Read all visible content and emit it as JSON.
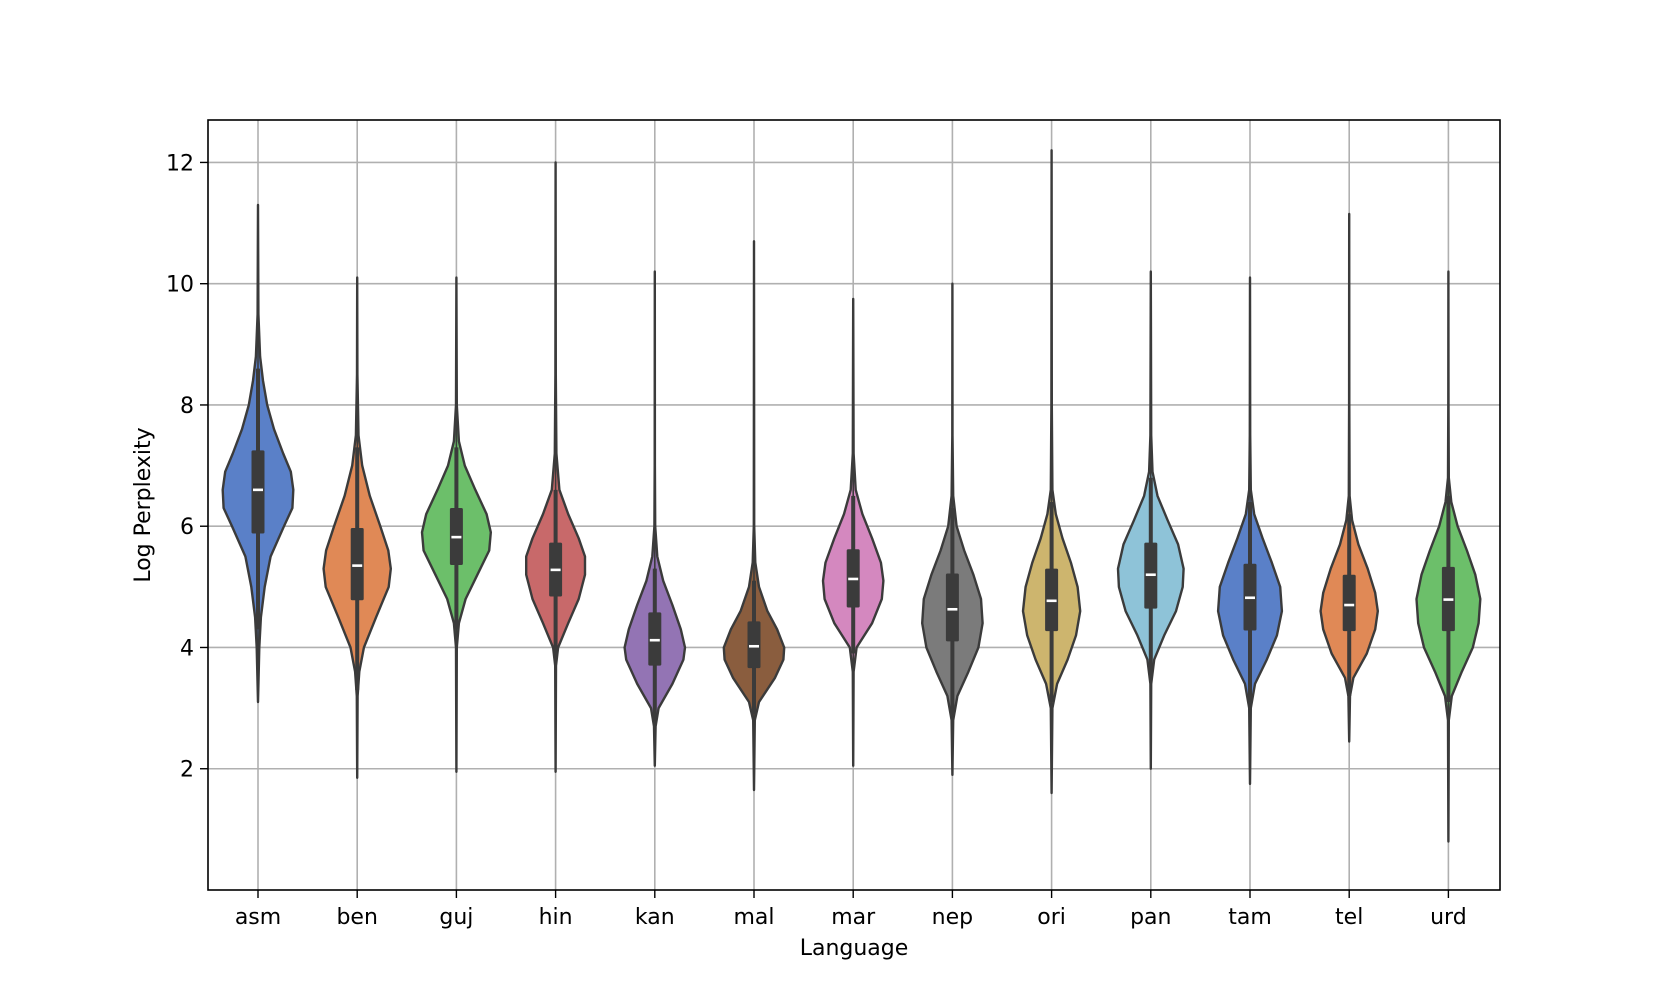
{
  "chart_data": {
    "type": "violin",
    "title": "",
    "xlabel": "Language",
    "ylabel": "Log Perplexity",
    "ylim": [
      0.0,
      12.7
    ],
    "yticks": [
      2,
      4,
      6,
      8,
      10,
      12
    ],
    "grid": true,
    "categories": [
      "asm",
      "ben",
      "guj",
      "hin",
      "kan",
      "mal",
      "mar",
      "nep",
      "ori",
      "pan",
      "tam",
      "tel",
      "urd"
    ],
    "violins": [
      {
        "label": "asm",
        "color": "#5a80c8",
        "min": 3.1,
        "max": 11.3,
        "q1": 5.88,
        "median": 6.6,
        "q3": 7.25,
        "w_low": 4.3,
        "w_high": 8.6,
        "profile": [
          [
            3.1,
            0.0
          ],
          [
            4.0,
            0.03
          ],
          [
            4.5,
            0.07
          ],
          [
            5.0,
            0.16
          ],
          [
            5.5,
            0.3
          ],
          [
            6.0,
            0.62
          ],
          [
            6.3,
            0.82
          ],
          [
            6.6,
            0.84
          ],
          [
            6.9,
            0.78
          ],
          [
            7.2,
            0.6
          ],
          [
            7.6,
            0.38
          ],
          [
            8.0,
            0.22
          ],
          [
            8.4,
            0.12
          ],
          [
            8.8,
            0.05
          ],
          [
            9.5,
            0.01
          ],
          [
            11.3,
            0.0
          ]
        ]
      },
      {
        "label": "ben",
        "color": "#e08956",
        "min": 1.85,
        "max": 10.1,
        "q1": 4.78,
        "median": 5.35,
        "q3": 5.97,
        "w_low": 3.3,
        "w_high": 7.3,
        "profile": [
          [
            1.85,
            0.0
          ],
          [
            3.2,
            0.01
          ],
          [
            3.6,
            0.05
          ],
          [
            4.0,
            0.16
          ],
          [
            4.5,
            0.45
          ],
          [
            5.0,
            0.75
          ],
          [
            5.3,
            0.8
          ],
          [
            5.6,
            0.74
          ],
          [
            6.0,
            0.55
          ],
          [
            6.5,
            0.3
          ],
          [
            7.0,
            0.12
          ],
          [
            7.5,
            0.03
          ],
          [
            8.5,
            0.005
          ],
          [
            10.1,
            0.0
          ]
        ]
      },
      {
        "label": "guj",
        "color": "#6cbf6a",
        "min": 1.95,
        "max": 10.1,
        "q1": 5.36,
        "median": 5.82,
        "q3": 6.3,
        "w_low": 4.3,
        "w_high": 7.3,
        "profile": [
          [
            1.95,
            0.0
          ],
          [
            4.0,
            0.01
          ],
          [
            4.4,
            0.06
          ],
          [
            4.8,
            0.22
          ],
          [
            5.2,
            0.5
          ],
          [
            5.6,
            0.78
          ],
          [
            5.9,
            0.82
          ],
          [
            6.2,
            0.72
          ],
          [
            6.6,
            0.45
          ],
          [
            7.0,
            0.2
          ],
          [
            7.4,
            0.06
          ],
          [
            8.0,
            0.01
          ],
          [
            10.1,
            0.0
          ]
        ]
      },
      {
        "label": "hin",
        "color": "#c8696a",
        "min": 1.95,
        "max": 12.0,
        "q1": 4.84,
        "median": 5.28,
        "q3": 5.73,
        "w_low": 3.9,
        "w_high": 6.6,
        "profile": [
          [
            1.95,
            0.0
          ],
          [
            3.7,
            0.01
          ],
          [
            4.0,
            0.06
          ],
          [
            4.4,
            0.3
          ],
          [
            4.8,
            0.55
          ],
          [
            5.2,
            0.7
          ],
          [
            5.5,
            0.7
          ],
          [
            5.8,
            0.55
          ],
          [
            6.2,
            0.3
          ],
          [
            6.6,
            0.09
          ],
          [
            7.2,
            0.02
          ],
          [
            8.5,
            0.005
          ],
          [
            12.0,
            0.0
          ]
        ]
      },
      {
        "label": "kan",
        "color": "#9374b4",
        "min": 2.05,
        "max": 10.2,
        "q1": 3.7,
        "median": 4.12,
        "q3": 4.58,
        "w_low": 2.8,
        "w_high": 5.3,
        "profile": [
          [
            2.05,
            0.0
          ],
          [
            2.7,
            0.02
          ],
          [
            3.0,
            0.09
          ],
          [
            3.4,
            0.42
          ],
          [
            3.8,
            0.68
          ],
          [
            4.0,
            0.72
          ],
          [
            4.3,
            0.62
          ],
          [
            4.7,
            0.42
          ],
          [
            5.1,
            0.2
          ],
          [
            5.5,
            0.06
          ],
          [
            6.0,
            0.01
          ],
          [
            7.0,
            0.003
          ],
          [
            10.2,
            0.0
          ]
        ]
      },
      {
        "label": "mal",
        "color": "#8a5d3e",
        "min": 1.65,
        "max": 10.7,
        "q1": 3.66,
        "median": 4.02,
        "q3": 4.43,
        "w_low": 2.9,
        "w_high": 5.1,
        "profile": [
          [
            1.65,
            0.0
          ],
          [
            2.8,
            0.02
          ],
          [
            3.1,
            0.12
          ],
          [
            3.5,
            0.5
          ],
          [
            3.8,
            0.7
          ],
          [
            4.0,
            0.72
          ],
          [
            4.3,
            0.55
          ],
          [
            4.6,
            0.32
          ],
          [
            5.0,
            0.12
          ],
          [
            5.4,
            0.03
          ],
          [
            6.0,
            0.005
          ],
          [
            10.7,
            0.0
          ]
        ]
      },
      {
        "label": "mar",
        "color": "#d488bf",
        "min": 2.05,
        "max": 9.75,
        "q1": 4.66,
        "median": 5.13,
        "q3": 5.62,
        "w_low": 3.9,
        "w_high": 6.5,
        "profile": [
          [
            2.05,
            0.0
          ],
          [
            3.6,
            0.01
          ],
          [
            4.0,
            0.08
          ],
          [
            4.4,
            0.45
          ],
          [
            4.8,
            0.68
          ],
          [
            5.1,
            0.72
          ],
          [
            5.4,
            0.66
          ],
          [
            5.8,
            0.45
          ],
          [
            6.2,
            0.22
          ],
          [
            6.6,
            0.06
          ],
          [
            7.2,
            0.01
          ],
          [
            9.75,
            0.0
          ]
        ]
      },
      {
        "label": "nep",
        "color": "#7b7b7b",
        "min": 1.9,
        "max": 10.0,
        "q1": 4.1,
        "median": 4.63,
        "q3": 5.22,
        "w_low": 2.9,
        "w_high": 6.3,
        "profile": [
          [
            1.9,
            0.0
          ],
          [
            2.8,
            0.02
          ],
          [
            3.2,
            0.12
          ],
          [
            3.6,
            0.38
          ],
          [
            4.0,
            0.62
          ],
          [
            4.4,
            0.72
          ],
          [
            4.8,
            0.68
          ],
          [
            5.2,
            0.5
          ],
          [
            5.6,
            0.28
          ],
          [
            6.0,
            0.1
          ],
          [
            6.5,
            0.02
          ],
          [
            7.5,
            0.003
          ],
          [
            10.0,
            0.0
          ]
        ]
      },
      {
        "label": "ori",
        "color": "#cdb56e",
        "min": 1.6,
        "max": 12.2,
        "q1": 4.27,
        "median": 4.77,
        "q3": 5.3,
        "w_low": 3.1,
        "w_high": 6.4,
        "profile": [
          [
            1.6,
            0.0
          ],
          [
            3.0,
            0.02
          ],
          [
            3.4,
            0.13
          ],
          [
            3.8,
            0.38
          ],
          [
            4.2,
            0.58
          ],
          [
            4.6,
            0.68
          ],
          [
            5.0,
            0.62
          ],
          [
            5.4,
            0.46
          ],
          [
            5.8,
            0.26
          ],
          [
            6.2,
            0.1
          ],
          [
            6.6,
            0.02
          ],
          [
            8.0,
            0.004
          ],
          [
            12.2,
            0.0
          ]
        ]
      },
      {
        "label": "pan",
        "color": "#8ec3d8",
        "min": 2.0,
        "max": 10.2,
        "q1": 4.64,
        "median": 5.2,
        "q3": 5.73,
        "w_low": 3.5,
        "w_high": 6.8,
        "profile": [
          [
            2.0,
            0.0
          ],
          [
            3.4,
            0.01
          ],
          [
            3.8,
            0.08
          ],
          [
            4.2,
            0.32
          ],
          [
            4.6,
            0.6
          ],
          [
            5.0,
            0.76
          ],
          [
            5.3,
            0.78
          ],
          [
            5.7,
            0.65
          ],
          [
            6.1,
            0.4
          ],
          [
            6.5,
            0.16
          ],
          [
            6.9,
            0.04
          ],
          [
            7.5,
            0.01
          ],
          [
            10.2,
            0.0
          ]
        ]
      },
      {
        "label": "tam",
        "color": "#5a80c8",
        "min": 1.75,
        "max": 10.1,
        "q1": 4.28,
        "median": 4.82,
        "q3": 5.38,
        "w_low": 3.1,
        "w_high": 6.4,
        "profile": [
          [
            1.75,
            0.0
          ],
          [
            3.0,
            0.02
          ],
          [
            3.4,
            0.12
          ],
          [
            3.8,
            0.4
          ],
          [
            4.2,
            0.64
          ],
          [
            4.6,
            0.76
          ],
          [
            5.0,
            0.72
          ],
          [
            5.4,
            0.52
          ],
          [
            5.8,
            0.3
          ],
          [
            6.2,
            0.1
          ],
          [
            6.6,
            0.02
          ],
          [
            7.5,
            0.004
          ],
          [
            10.1,
            0.0
          ]
        ]
      },
      {
        "label": "tel",
        "color": "#e08956",
        "min": 2.45,
        "max": 11.15,
        "q1": 4.27,
        "median": 4.7,
        "q3": 5.2,
        "w_low": 3.2,
        "w_high": 6.2,
        "profile": [
          [
            2.45,
            0.0
          ],
          [
            3.2,
            0.02
          ],
          [
            3.5,
            0.1
          ],
          [
            3.9,
            0.42
          ],
          [
            4.3,
            0.62
          ],
          [
            4.6,
            0.68
          ],
          [
            4.9,
            0.62
          ],
          [
            5.3,
            0.44
          ],
          [
            5.7,
            0.22
          ],
          [
            6.1,
            0.07
          ],
          [
            6.5,
            0.01
          ],
          [
            8.0,
            0.003
          ],
          [
            11.15,
            0.0
          ]
        ]
      },
      {
        "label": "urd",
        "color": "#6cbf6a",
        "min": 0.8,
        "max": 10.2,
        "q1": 4.27,
        "median": 4.79,
        "q3": 5.33,
        "w_low": 3.1,
        "w_high": 6.5,
        "profile": [
          [
            0.8,
            0.0
          ],
          [
            2.8,
            0.01
          ],
          [
            3.2,
            0.08
          ],
          [
            3.6,
            0.32
          ],
          [
            4.0,
            0.58
          ],
          [
            4.4,
            0.72
          ],
          [
            4.8,
            0.76
          ],
          [
            5.2,
            0.64
          ],
          [
            5.6,
            0.44
          ],
          [
            6.0,
            0.22
          ],
          [
            6.4,
            0.07
          ],
          [
            6.8,
            0.01
          ],
          [
            8.0,
            0.003
          ],
          [
            10.2,
            0.0
          ]
        ]
      }
    ]
  }
}
